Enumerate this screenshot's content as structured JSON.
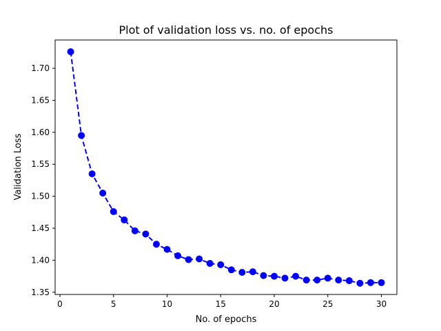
{
  "chart_data": {
    "type": "line",
    "title": "Plot of validation loss vs. no. of epochs",
    "xlabel": "No. of epochs",
    "ylabel": "Validation Loss",
    "xlim": [
      -0.45,
      31.45
    ],
    "ylim": [
      1.3465,
      1.7443
    ],
    "xticks": [
      0,
      5,
      10,
      15,
      20,
      25,
      30
    ],
    "xtick_labels": [
      "0",
      "5",
      "10",
      "15",
      "20",
      "25",
      "30"
    ],
    "yticks": [
      1.35,
      1.4,
      1.45,
      1.5,
      1.55,
      1.6,
      1.65,
      1.7
    ],
    "ytick_labels": [
      "1.35",
      "1.40",
      "1.45",
      "1.50",
      "1.55",
      "1.60",
      "1.65",
      "1.70"
    ],
    "grid": false,
    "color": "#0000ff",
    "marker": "circle",
    "linestyle": "dashed",
    "x": [
      1,
      2,
      3,
      4,
      5,
      6,
      7,
      8,
      9,
      10,
      11,
      12,
      13,
      14,
      15,
      16,
      17,
      18,
      19,
      20,
      21,
      22,
      23,
      24,
      25,
      26,
      27,
      28,
      29,
      30
    ],
    "y": [
      1.726,
      1.595,
      1.535,
      1.505,
      1.476,
      1.463,
      1.446,
      1.441,
      1.425,
      1.417,
      1.407,
      1.401,
      1.402,
      1.395,
      1.393,
      1.385,
      1.381,
      1.382,
      1.376,
      1.375,
      1.372,
      1.375,
      1.369,
      1.369,
      1.372,
      1.369,
      1.368,
      1.364,
      1.365,
      1.365
    ]
  }
}
